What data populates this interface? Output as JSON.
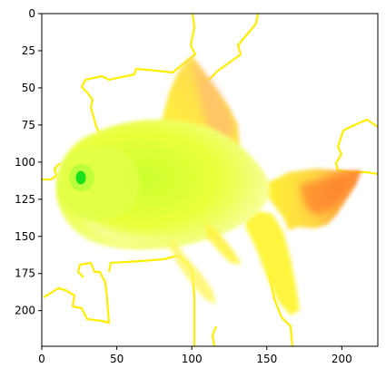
{
  "figure": {
    "subject": "goldfish-image",
    "background": "#ffffff"
  },
  "axes": {
    "x_range": [
      0,
      224
    ],
    "y_range": [
      224,
      0
    ],
    "x_ticks": [
      0,
      50,
      100,
      150,
      200
    ],
    "y_ticks": [
      0,
      25,
      50,
      75,
      100,
      125,
      150,
      175,
      200
    ],
    "x_tick_labels": [
      "0",
      "50",
      "100",
      "150",
      "200"
    ],
    "y_tick_labels": [
      "0",
      "25",
      "50",
      "75",
      "100",
      "125",
      "150",
      "175",
      "200"
    ]
  },
  "colors": {
    "contour": "#ffee00",
    "fish_body": "#e9ff3a",
    "fish_belly": "#f7ff9a",
    "fin": "#fffb2a",
    "fin_orange": "#ff8a2a",
    "eye": "#18e01a"
  }
}
